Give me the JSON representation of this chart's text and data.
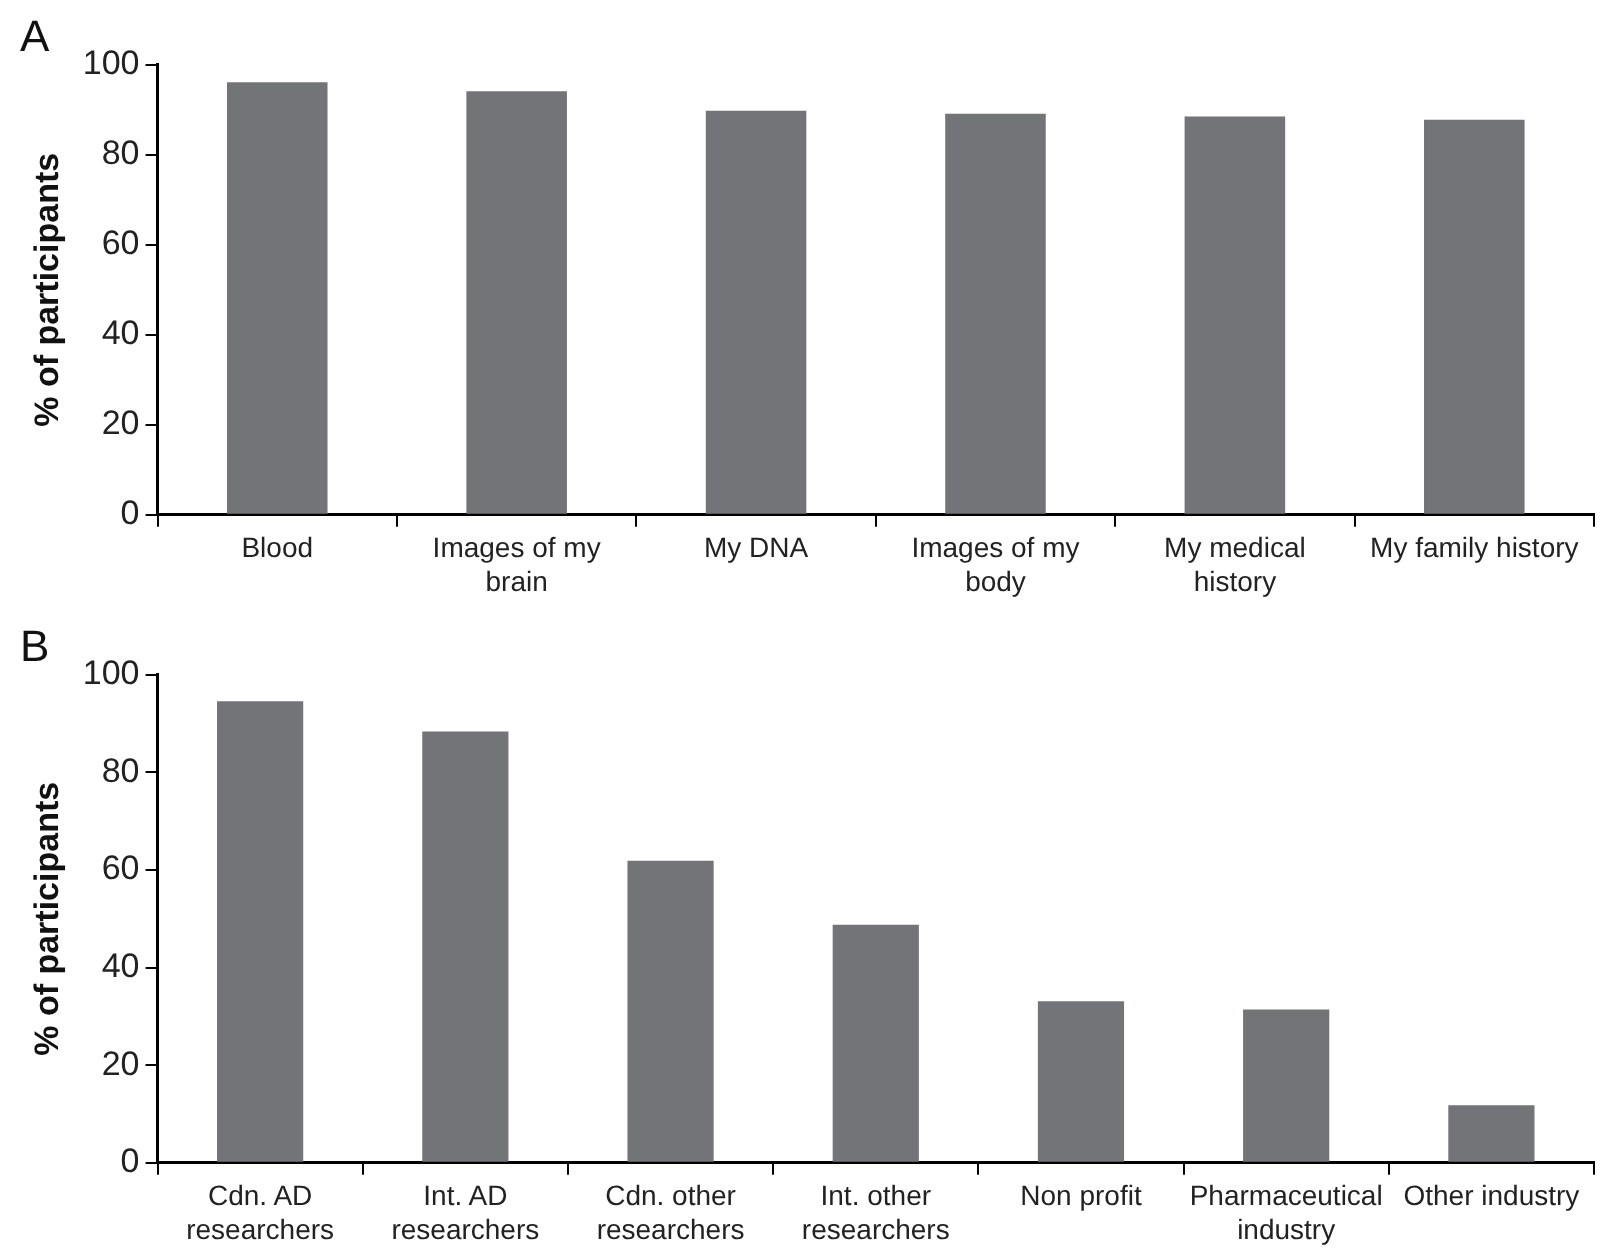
{
  "chart_data": [
    {
      "type": "bar",
      "title": "A",
      "ylabel": "% of participants",
      "categories": [
        "Blood",
        "Images of my brain",
        "My DNA",
        "Images of my body",
        "My medical history",
        "My family history"
      ],
      "values": [
        96.1,
        94.1,
        89.8,
        89.1,
        88.5,
        87.8
      ],
      "color": "#737478",
      "ylim": [
        0,
        100
      ],
      "yticks": [
        0,
        20,
        40,
        60,
        80,
        100
      ],
      "grid": false,
      "legend": false
    },
    {
      "type": "bar",
      "title": "B",
      "ylabel": "% of participants",
      "categories": [
        "Cdn. AD researchers",
        "Int. AD researchers",
        "Cdn. other researchers",
        "Int. other researchers",
        "Non profit",
        "Pharmaceutical industry",
        "Other industry"
      ],
      "values": [
        94.6,
        88.4,
        61.9,
        48.8,
        33.1,
        31.4,
        11.8
      ],
      "color": "#737478",
      "ylim": [
        0,
        100
      ],
      "yticks": [
        0,
        20,
        40,
        60,
        80,
        100
      ],
      "grid": false,
      "legend": false
    }
  ]
}
